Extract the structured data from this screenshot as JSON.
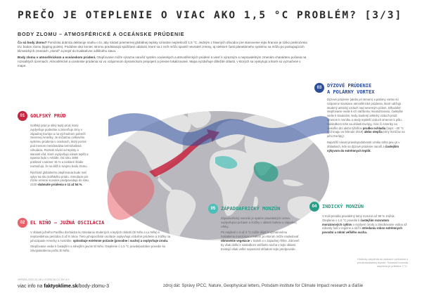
{
  "header": {
    "title": "PREČO JE OTEPLENIE O VIAC AKO 1,5 °C PROBLÉM? [3/3]",
    "subtitle": "BODY ZLOMU – ATMOSFÉRICKÉ A OCEÁNSKE PRÚDENIE"
  },
  "intro": {
    "p1_lead": "Čo sú body zlomu?",
    "p1": "Pomôcka dobrota deklaruje snahu o to, aby nárast priemernej globálnej teploty vzrastne neprekročil 1,5 °C. Jedným z hlavných dôvodov pre stanovenie tejto hranice je riziko prekročenia tzv. bodov zlomu (tipping points). Podobne ako koniec stromu predstavujú spúšťané udalosti, ktoré sa z nich môžu spustiť nevratné zmeny, aj niektoré časti planetárneho systému sa môžu po postupujúcich klimatických zmenách „zlomiť“ a prejsť do kvalitatívne odlišného stavu.",
    "p2_lead": "Body zlomu v atmosférickom a oceánskom prúdení.",
    "p2": "Otepľovanie môže výrazne narušiť systém oceánskych a atmosférických prúdení a viesť k výrazným a nepravidelným zmenám charakteru počasia na rozsiahlych územiach. Atmosférické a oceánske prúdenia sú vo vzájomnom dynamickom prepojení a presne lokalizované. Mapa vyzdvihuje dôležité oblasti, v ktorých sa vyskytujú a ktoré sú vyznačené v mape."
  },
  "sections": {
    "s1": {
      "number": "01",
      "title": "GOLFSKÝ PRÚD",
      "p1": "Golfský prúd je silný teplý prúd, ktorý ovplyvňuje podnebie a zmierňuje zimy v západnej Európe a na východnom pobreží Severnej Ameriky. Je súčasťou celkového systému prúdenia v oceánoch, ktorý pozná pod menom meridionálna termohalinná cirkulácia. Rozsah závisí od teploty a slanosti vôd, ktoré ovplyvňujú nárast teplôt a topenia ľadu v Arktíde. Od roku 1950 poklesol o takmer 15 % a niektoré štúdie naznačujú, že sa blíži k svojmu bodu zlomu.",
      "p2_pre": "Rýchlosť globálneho otepľovania bude mať vplyv na silu Golfského prúdu. Simulácie pre rôzne emisné scenáre predpovedajú do roku 2100",
      "p2_bold": "slabnutie prúdenia o 11 až 54 %."
    },
    "s2": {
      "number": "02",
      "title": "EL NIÑO – JUŽNÁ OSCILÁCIA",
      "p1_pre": "V oblasti južného Pacifiku dochádza ku striedaniu studených a teplých období (El Niño a La Niña) s nepravidelnou periódou 3 až 8 rokov. Tieto juhopacifické oscilácie ovplyvňujú vzdušné prúdenie a zrážky na juhozápade Ameriky a Austrálie,",
      "p1_bold": "spôsobuje extrémne počasie (povodne i sucho) a ovplyvňuje úrodu.",
      "p2": "Otepľovanie vedie k častejším a silnejším javom El Niño. Oteplenie o 1,5 °C pravdepodobne povedie ku zdvojnásobeniu počtu El Niño."
    },
    "s3": {
      "number": "03",
      "title_line1": "DÝZOVÉ PRÚDENIE",
      "title_line2": "A POLÁRNY VORTEX",
      "p1": "Dýzové prúdenie (alebo jet stream) a polárny vortex sú vzájomne súvisiace atmosférické prúdenia, ktoré udržujú studený arktický vzduch nad severným pólom. Dlhodobé otepľovanie vedie k ich väčšiemu meandrovaniu, častejšie vedie k situáciám, kedy studený arktický vzduch prúdi smerom k rovníku a vtedy tepletší vzduch smerom k pólu. Následkom toho sa oblasti Európy, Ázie či Ameriky na niekoľko dní alebo týždňov",
      "p1_bold": "prudko ochladia",
      "p1_post": "(napr. –30 °C v Chicagu vo februári 2019)",
      "p1_bold2": "alebo otepľia",
      "p1_post2": "(vlny horúčav na juhu Európy).",
      "p2_pre": "Najväčší nárast pravdepodobnosti vzniku tohto javu je v oblastiach, kde sa dýzové prúdenie naruší a",
      "p2_bold": "častejším výkyvom do extrémnych teplôt."
    },
    "s4": {
      "number": "04",
      "title": "INDICKÝ MONZÚN",
      "p1_pre": "V Indii prináša pravidelný letný monzún až 90 % zrážok. Oteplenie o 1,5 °C povedie k",
      "p1_bold": "častejším rozvratom monzúnových cyklov",
      "p1_post": "a ovplyvní úrodu a zásobovanie vodou až miliardy ľudí v regióne a tiež k",
      "p1_bold2": "striedaniu rokov extrémnych povodní a rokmi veľkého sucha."
    },
    "s5": {
      "number": "05",
      "title": "ZÁPADOAFRICKÝ MONZÚN",
      "p1": "Západoafrický monzún je systém pravidelných vetrov ovplyvňujúci počasie a zrážky v oblasti Sahelu a západnej Afriky.",
      "p2_pre": "Pri oteplení o 3 až 3 °C môže dôjsť k významnému zoslabeniu monzúnov v Saheli, po ktorom môže nasledovať",
      "p2_bold": "obnovenie vegetácie",
      "p2_post": "v Saheli a v západnej Afrike. Zároveň by však došlo k následkom väčšieho sucha v tejto oblasti. Existujú však veľké nejasnosti ohľadom tejto predpovede."
    }
  },
  "footer": {
    "version": "VERZIA 2022-02-28 | LICENCIA CC BY 4.0",
    "url_pre": "viac info na ",
    "url_bold": "faktyoklime.sk",
    "url_post": "/body-zlomu-3",
    "source": "zdroj dát: Správy IPCC, Nature, Geophysical letters, Potsdam institute for Climate Impact research a ďalšie",
    "note": "Hodnoty oteplenia sú udávané vzhľadom k predindustriálnej teplote. Súčasná hodnota oteplenia je približne 1 °C."
  },
  "colors": {
    "s1": "#c5253f",
    "s2": "#e9606a",
    "s3": "#2e4e9c",
    "s4": "#2a9d86",
    "s5": "#4abfb8",
    "map_land": "#e2e2e2",
    "map_ocean": "#b8b8be"
  }
}
